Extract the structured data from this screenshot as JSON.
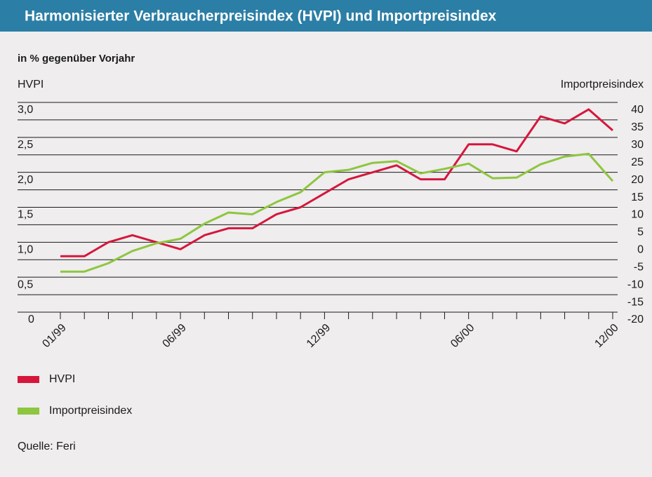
{
  "chart_data": {
    "type": "line",
    "title": "Harmonisierter Verbraucherpreisindex (HVPI) und Importpreisindex",
    "subtitle": "in % gegenüber Vorjahr",
    "y_label": "HVPI",
    "y2_label": "Importpreisindex",
    "source": "Quelle: Feri",
    "categories": [
      "01/99",
      null,
      null,
      null,
      null,
      "06/99",
      null,
      null,
      null,
      null,
      null,
      "12/99",
      null,
      null,
      null,
      null,
      null,
      "06/00",
      null,
      null,
      null,
      null,
      null,
      "12/00"
    ],
    "series": [
      {
        "name": "HVPI",
        "color": "#d6163c",
        "values": [
          0.8,
          0.8,
          1.0,
          1.1,
          1.0,
          0.9,
          1.1,
          1.2,
          1.2,
          1.4,
          1.5,
          1.7,
          1.9,
          2.0,
          2.1,
          1.9,
          1.9,
          2.4,
          2.4,
          2.3,
          2.8,
          2.7,
          2.9,
          2.6
        ]
      },
      {
        "name": "Importpreisindex",
        "color": "#8dc63f",
        "axis": "y2",
        "values": [
          -8.4,
          -8.4,
          -6,
          -2.5,
          -0.3,
          1,
          5.3,
          8.5,
          8,
          11.5,
          14.3,
          20,
          20.7,
          22.7,
          23.2,
          19.7,
          21,
          22.5,
          18.3,
          18.5,
          22.3,
          24.5,
          25.3,
          17.5
        ]
      }
    ],
    "ylim": [
      0,
      3.0
    ],
    "yticks": [
      {
        "value": 0,
        "label": "0"
      },
      {
        "value": 0.5,
        "label": "0,5"
      },
      {
        "value": 1.0,
        "label": "1,0"
      },
      {
        "value": 1.5,
        "label": "1,5"
      },
      {
        "value": 2.0,
        "label": "2,0"
      },
      {
        "value": 2.5,
        "label": "2,5"
      },
      {
        "value": 3.0,
        "label": "3,0"
      }
    ],
    "y2lim": [
      -20,
      40
    ],
    "y2ticks": [
      -20,
      -15,
      -10,
      -5,
      0,
      5,
      10,
      15,
      20,
      25,
      30,
      35,
      40
    ],
    "grid": true
  }
}
